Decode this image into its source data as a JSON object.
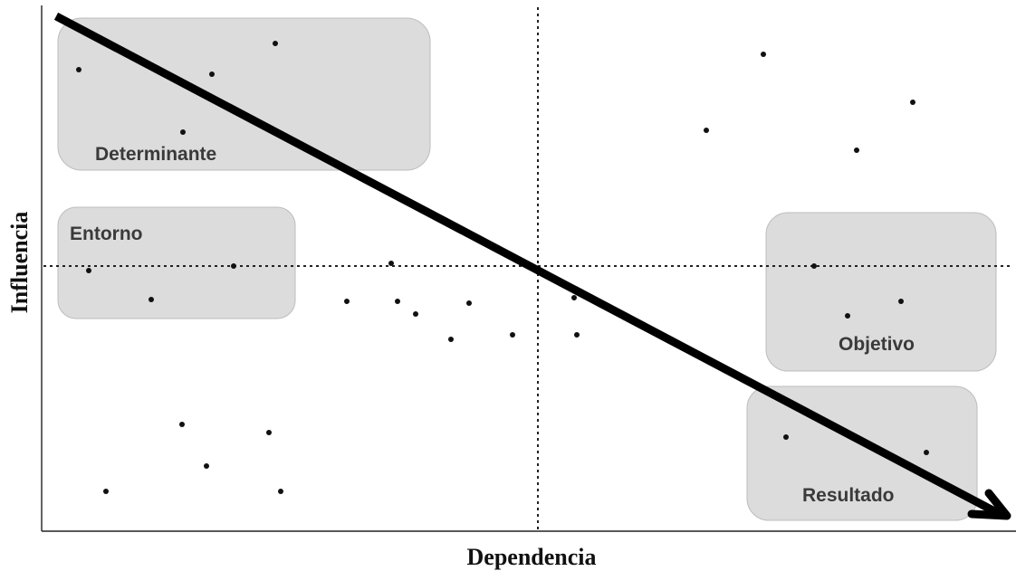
{
  "axes": {
    "x_label": "Dependencia",
    "y_label": "Influencia"
  },
  "zones": {
    "determinante": "Determinante",
    "entorno": "Entorno",
    "objetivo": "Objetivo",
    "resultado": "Resultado"
  },
  "variable_points": [
    {
      "id": "p1"
    },
    {
      "id": "p2"
    },
    {
      "id": "p3"
    },
    {
      "id": "p4"
    },
    {
      "id": "p5"
    },
    {
      "id": "p6"
    },
    {
      "id": "p7"
    },
    {
      "id": "p8"
    },
    {
      "id": "p9"
    },
    {
      "id": "p10"
    },
    {
      "id": "p11"
    },
    {
      "id": "p12"
    },
    {
      "id": "p13"
    },
    {
      "id": "p14"
    },
    {
      "id": "p15"
    },
    {
      "id": "p16"
    },
    {
      "id": "p17"
    },
    {
      "id": "p18"
    },
    {
      "id": "p19"
    },
    {
      "id": "p20"
    },
    {
      "id": "p21"
    },
    {
      "id": "p22"
    },
    {
      "id": "p23"
    },
    {
      "id": "p24"
    },
    {
      "id": "p25"
    },
    {
      "id": "p26"
    },
    {
      "id": "p27"
    },
    {
      "id": "p28"
    },
    {
      "id": "p29"
    },
    {
      "id": "p30"
    },
    {
      "id": "p31"
    }
  ],
  "colors": {
    "zone_fill": "#dcdcdc",
    "zone_text": "#3a3a3a",
    "lines": "#000000"
  }
}
